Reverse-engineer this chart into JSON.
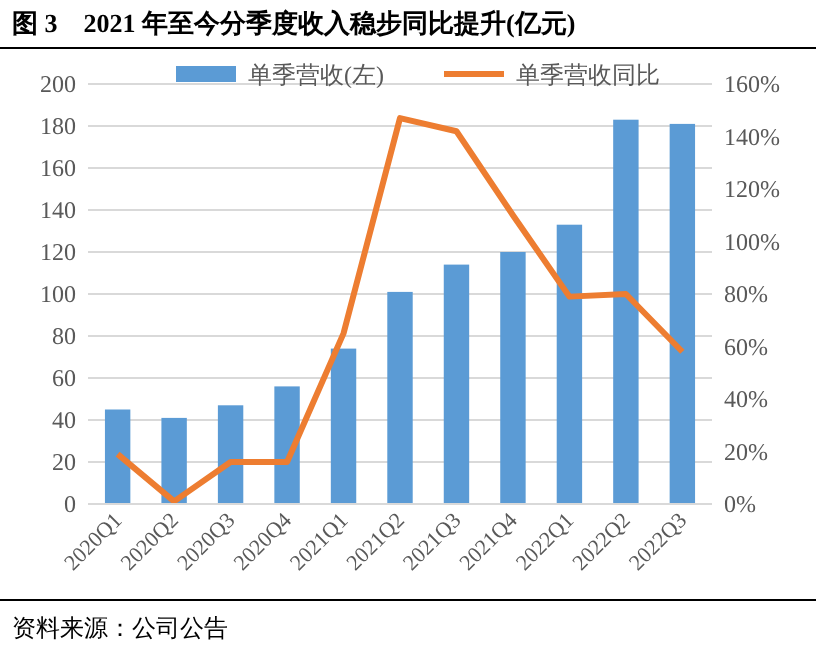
{
  "chart_data": {
    "type": "bar",
    "title": "图 3　2021 年至今分季度收入稳步同比提升(亿元)",
    "categories": [
      "2020Q1",
      "2020Q2",
      "2020Q3",
      "2020Q4",
      "2021Q1",
      "2021Q2",
      "2021Q3",
      "2021Q4",
      "2022Q1",
      "2022Q2",
      "2022Q3"
    ],
    "series": [
      {
        "name": "单季营收(左)",
        "color": "#5b9bd5",
        "values": [
          45,
          41,
          47,
          56,
          74,
          101,
          114,
          120,
          133,
          183,
          181
        ]
      },
      {
        "name": "单季营收同比",
        "type": "line",
        "axis": "y2",
        "color": "#ed7d31",
        "values": [
          19,
          1,
          16,
          16,
          65,
          147,
          142,
          110,
          79,
          80,
          58
        ]
      }
    ],
    "ylim": [
      0,
      200
    ],
    "yticks": [
      0,
      20,
      40,
      60,
      80,
      100,
      120,
      140,
      160,
      180,
      200
    ],
    "y2lim": [
      0,
      160
    ],
    "y2ticks": [
      {
        "value": 0,
        "label": "0%"
      },
      {
        "value": 20,
        "label": "20%"
      },
      {
        "value": 40,
        "label": "40%"
      },
      {
        "value": 60,
        "label": "60%"
      },
      {
        "value": 80,
        "label": "80%"
      },
      {
        "value": 100,
        "label": "100%"
      },
      {
        "value": 120,
        "label": "120%"
      },
      {
        "value": 140,
        "label": "140%"
      },
      {
        "value": 160,
        "label": "160%"
      }
    ],
    "grid": "y",
    "legend": "top",
    "marker": "none",
    "annotations": [
      "资料来源：公司公告"
    ]
  }
}
